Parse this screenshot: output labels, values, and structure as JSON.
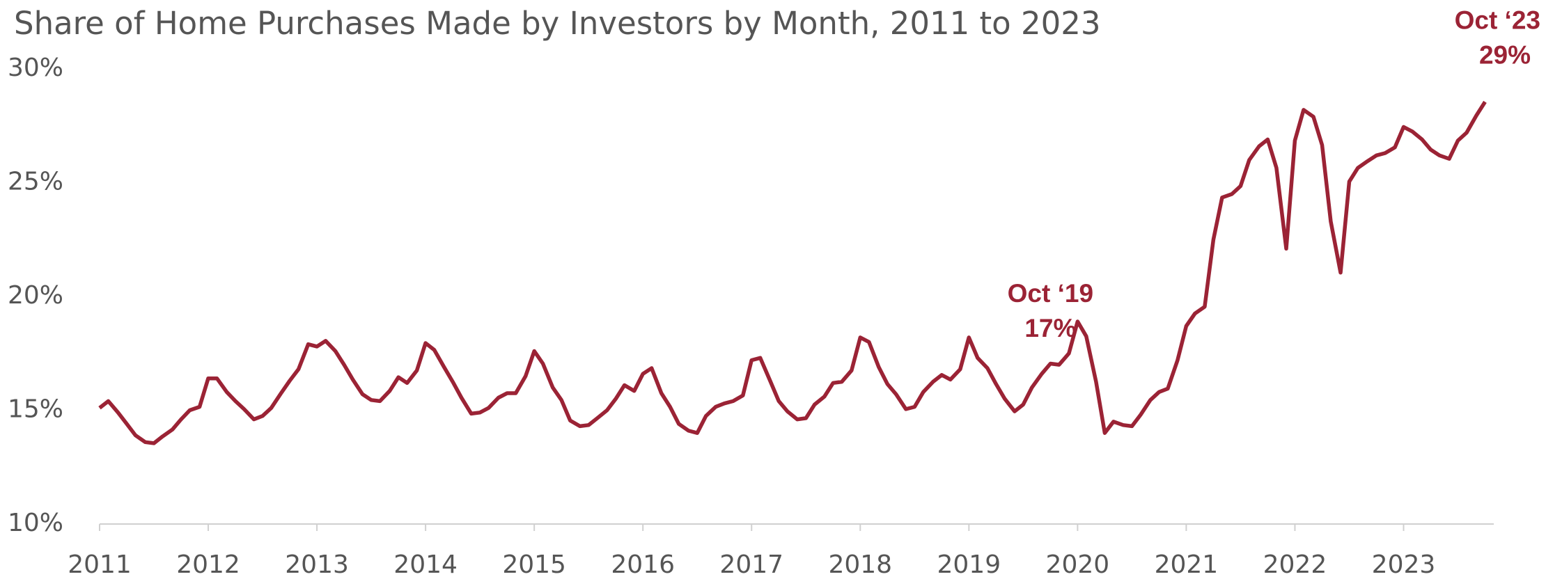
{
  "chart_data": {
    "type": "line",
    "title": "Share of Home Purchases Made by Investors by Month, 2011 to 2023",
    "x": [
      2011,
      2011.08,
      2011.17,
      2011.25,
      2011.33,
      2011.42,
      2011.5,
      2011.58,
      2011.67,
      2011.75,
      2011.83,
      2011.92,
      2012,
      2012.08,
      2012.17,
      2012.25,
      2012.33,
      2012.42,
      2012.5,
      2012.58,
      2012.67,
      2012.75,
      2012.83,
      2012.92,
      2013,
      2013.08,
      2013.17,
      2013.25,
      2013.33,
      2013.42,
      2013.5,
      2013.58,
      2013.67,
      2013.75,
      2013.83,
      2013.92,
      2014,
      2014.08,
      2014.17,
      2014.25,
      2014.33,
      2014.42,
      2014.5,
      2014.58,
      2014.67,
      2014.75,
      2014.83,
      2014.92,
      2015,
      2015.08,
      2015.17,
      2015.25,
      2015.33,
      2015.42,
      2015.5,
      2015.58,
      2015.67,
      2015.75,
      2015.83,
      2015.92,
      2016,
      2016.08,
      2016.17,
      2016.25,
      2016.33,
      2016.42,
      2016.5,
      2016.58,
      2016.67,
      2016.75,
      2016.83,
      2016.92,
      2017,
      2017.08,
      2017.17,
      2017.25,
      2017.33,
      2017.42,
      2017.5,
      2017.58,
      2017.67,
      2017.75,
      2017.83,
      2017.92,
      2018,
      2018.08,
      2018.17,
      2018.25,
      2018.33,
      2018.42,
      2018.5,
      2018.58,
      2018.67,
      2018.75,
      2018.83,
      2018.92,
      2019,
      2019.08,
      2019.17,
      2019.25,
      2019.33,
      2019.42,
      2019.5,
      2019.58,
      2019.67,
      2019.75,
      2019.83,
      2019.92,
      2020,
      2020.08,
      2020.17,
      2020.25,
      2020.33,
      2020.42,
      2020.5,
      2020.58,
      2020.67,
      2020.75,
      2020.83,
      2020.92,
      2021,
      2021.08,
      2021.17,
      2021.25,
      2021.33,
      2021.42,
      2021.5,
      2021.58,
      2021.67,
      2021.75,
      2021.83,
      2021.92,
      2022,
      2022.08,
      2022.17,
      2022.25,
      2022.33,
      2022.42,
      2022.5,
      2022.58,
      2022.67,
      2022.75,
      2022.83,
      2022.92,
      2023,
      2023.08,
      2023.17,
      2023.25,
      2023.33,
      2023.42,
      2023.5,
      2023.58,
      2023.67,
      2023.75
    ],
    "series": [
      {
        "color": "#9b2335",
        "values": [
          15.1,
          15.4,
          14.9,
          14.4,
          13.9,
          13.6,
          13.55,
          13.85,
          14.15,
          14.6,
          15.0,
          15.15,
          16.4,
          16.4,
          15.8,
          15.4,
          15.05,
          14.6,
          14.75,
          15.1,
          15.75,
          16.3,
          16.8,
          17.9,
          17.8,
          18.05,
          17.6,
          17.0,
          16.35,
          15.7,
          15.45,
          15.4,
          15.85,
          16.45,
          16.2,
          16.75,
          17.95,
          17.65,
          16.9,
          16.25,
          15.55,
          14.85,
          14.9,
          15.1,
          15.55,
          15.75,
          15.75,
          16.5,
          17.6,
          17.05,
          16.0,
          15.45,
          14.55,
          14.3,
          14.35,
          14.65,
          15.0,
          15.5,
          16.1,
          15.85,
          16.6,
          16.85,
          15.75,
          15.15,
          14.4,
          14.1,
          14.0,
          14.75,
          15.15,
          15.3,
          15.4,
          15.65,
          17.2,
          17.3,
          16.3,
          15.4,
          14.95,
          14.6,
          14.65,
          15.25,
          15.6,
          16.2,
          16.25,
          16.75,
          18.2,
          18.0,
          16.9,
          16.15,
          15.7,
          15.05,
          15.15,
          15.8,
          16.25,
          16.55,
          16.35,
          16.8,
          18.2,
          17.3,
          16.85,
          16.15,
          15.5,
          14.95,
          15.25,
          16.0,
          16.6,
          17.05,
          17.0,
          17.5,
          18.9,
          18.25,
          16.25,
          14.0,
          14.5,
          14.35,
          14.3,
          14.8,
          15.45,
          15.8,
          15.95,
          17.2,
          18.7,
          19.25,
          19.55,
          22.5,
          24.35,
          24.5,
          24.85,
          26.0,
          26.6,
          26.9,
          25.65,
          22.1,
          26.85,
          28.2,
          27.9,
          26.65,
          23.3,
          21.05,
          25.05,
          25.65,
          25.95,
          26.2,
          26.3,
          26.55,
          27.45,
          27.25,
          26.9,
          26.45,
          26.2,
          26.05,
          26.85,
          27.2,
          27.95,
          28.55
        ]
      }
    ],
    "xlim": [
      2011,
      2023.83
    ],
    "xticks": [
      2011,
      2012,
      2013,
      2014,
      2015,
      2016,
      2017,
      2018,
      2019,
      2020,
      2021,
      2022,
      2023
    ],
    "ylim": [
      10,
      30
    ],
    "yticks": [
      {
        "value": 10,
        "label": "10%"
      },
      {
        "value": 15,
        "label": "15%"
      },
      {
        "value": 20,
        "label": "20%"
      },
      {
        "value": 25,
        "label": "25%"
      },
      {
        "value": 30,
        "label": "30%"
      }
    ],
    "grid": false,
    "annotations": [
      {
        "label": "Oct ‘19",
        "value": 17,
        "value_label": "17%",
        "x": 2019.75
      },
      {
        "label": "Oct ‘23",
        "value": 29,
        "value_label": "29%",
        "x": 2023.75
      }
    ]
  }
}
